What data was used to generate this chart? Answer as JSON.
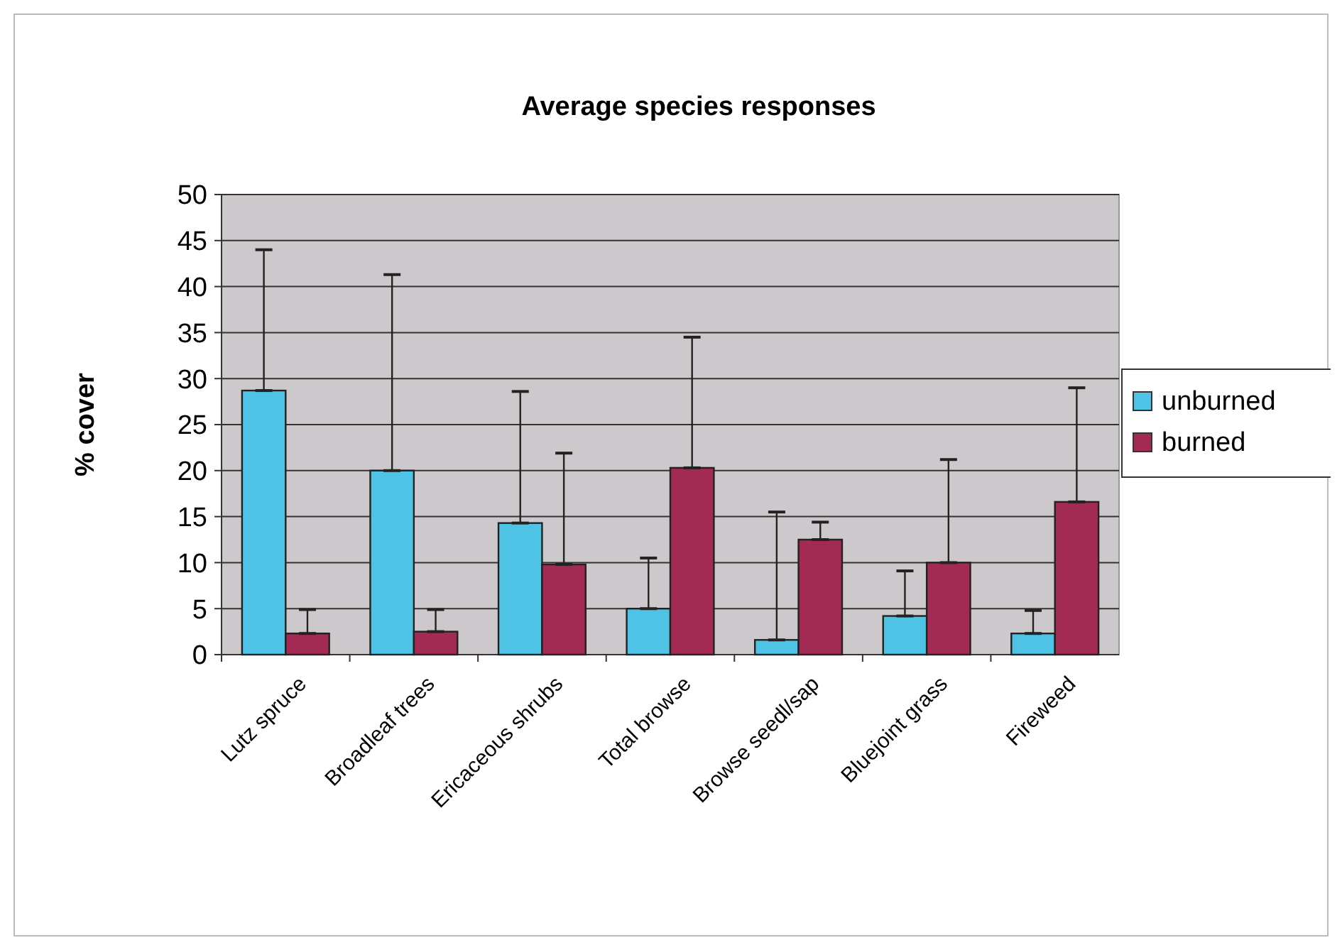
{
  "chart_data": {
    "type": "bar",
    "title": "Average species responses",
    "ylabel": "% cover",
    "categories": [
      "Lutz spruce",
      "Broadleaf trees",
      "Ericaceous shrubs",
      "Total browse",
      "Browse seedl/sap",
      "Bluejoint grass",
      "Fireweed"
    ],
    "series": [
      {
        "name": "unburned",
        "color": "#4fc3e6",
        "values": [
          28.7,
          20,
          14.3,
          5,
          1.6,
          4.2,
          2.3
        ],
        "errors": [
          [
            28.7,
            44
          ],
          [
            20,
            41.3
          ],
          [
            14.3,
            28.6
          ],
          [
            5,
            10.5
          ],
          [
            1.6,
            15.5
          ],
          [
            4.2,
            9.1
          ],
          [
            2.3,
            4.8
          ]
        ]
      },
      {
        "name": "burned",
        "color": "#a32a52",
        "values": [
          2.3,
          2.5,
          9.8,
          20.3,
          12.5,
          10,
          16.6
        ],
        "errors": [
          [
            2.3,
            4.9
          ],
          [
            2.5,
            4.9
          ],
          [
            9.8,
            21.9
          ],
          [
            20.3,
            34.5
          ],
          [
            12.5,
            14.4
          ],
          [
            10,
            21.2
          ],
          [
            16.6,
            29
          ]
        ]
      }
    ],
    "ylim": [
      0,
      50
    ],
    "yticks": [
      0,
      5,
      10,
      15,
      20,
      25,
      30,
      35,
      40,
      45,
      50
    ],
    "grid": "y",
    "legend": "right"
  }
}
